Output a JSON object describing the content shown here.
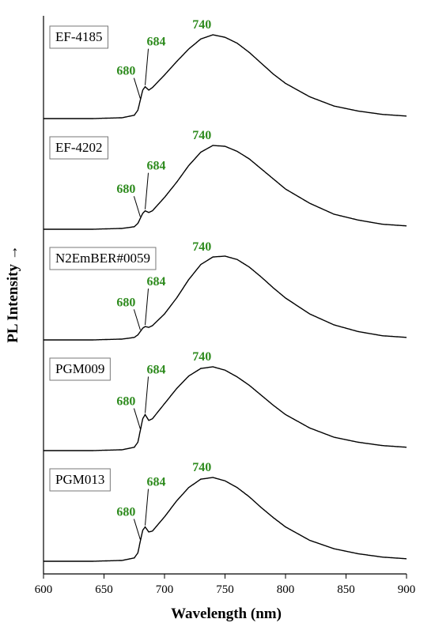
{
  "chart_data": {
    "type": "line",
    "xlabel": "Wavelength (nm)",
    "ylabel": "PL Intensity →",
    "xlim": [
      600,
      900
    ],
    "xticks": [
      600,
      650,
      700,
      750,
      800,
      850,
      900
    ],
    "yticks_shown": false,
    "grid": false,
    "annotation_color": "#2e8b1e",
    "series": [
      {
        "name": "EF-4185",
        "peaks": [
          680,
          684,
          740
        ],
        "x": [
          600,
          640,
          665,
          675,
          678,
          680,
          682,
          684,
          687,
          690,
          700,
          710,
          720,
          730,
          740,
          750,
          760,
          770,
          780,
          790,
          800,
          820,
          840,
          860,
          880,
          900
        ],
        "y": [
          0.0,
          0.0,
          0.01,
          0.04,
          0.1,
          0.22,
          0.34,
          0.38,
          0.34,
          0.37,
          0.52,
          0.68,
          0.83,
          0.95,
          1.0,
          0.97,
          0.9,
          0.79,
          0.66,
          0.53,
          0.42,
          0.26,
          0.15,
          0.09,
          0.05,
          0.03
        ]
      },
      {
        "name": "EF-4202",
        "peaks": [
          680,
          684,
          740
        ],
        "x": [
          600,
          640,
          665,
          675,
          678,
          680,
          682,
          684,
          687,
          690,
          700,
          710,
          720,
          730,
          740,
          750,
          760,
          770,
          780,
          790,
          800,
          820,
          840,
          860,
          880,
          900
        ],
        "y": [
          0.0,
          0.0,
          0.01,
          0.03,
          0.07,
          0.13,
          0.19,
          0.22,
          0.2,
          0.22,
          0.38,
          0.56,
          0.76,
          0.92,
          1.0,
          0.99,
          0.93,
          0.84,
          0.72,
          0.6,
          0.48,
          0.31,
          0.18,
          0.11,
          0.06,
          0.04
        ]
      },
      {
        "name": "N2EmBER#0059",
        "peaks": [
          680,
          684,
          740
        ],
        "x": [
          600,
          640,
          665,
          675,
          678,
          680,
          682,
          684,
          687,
          690,
          700,
          710,
          720,
          730,
          740,
          750,
          760,
          770,
          780,
          790,
          800,
          820,
          840,
          860,
          880,
          900
        ],
        "y": [
          0.0,
          0.0,
          0.01,
          0.03,
          0.06,
          0.1,
          0.14,
          0.16,
          0.15,
          0.17,
          0.31,
          0.5,
          0.72,
          0.9,
          0.99,
          1.0,
          0.96,
          0.87,
          0.75,
          0.62,
          0.5,
          0.31,
          0.18,
          0.1,
          0.05,
          0.03
        ]
      },
      {
        "name": "PGM009",
        "peaks": [
          680,
          684,
          740
        ],
        "x": [
          600,
          640,
          665,
          675,
          678,
          680,
          682,
          684,
          687,
          690,
          700,
          710,
          720,
          730,
          740,
          750,
          760,
          770,
          780,
          790,
          800,
          820,
          840,
          860,
          880,
          900
        ],
        "y": [
          0.0,
          0.0,
          0.01,
          0.04,
          0.1,
          0.24,
          0.38,
          0.43,
          0.36,
          0.38,
          0.56,
          0.74,
          0.89,
          0.98,
          1.0,
          0.96,
          0.88,
          0.78,
          0.66,
          0.54,
          0.43,
          0.27,
          0.16,
          0.1,
          0.06,
          0.04
        ]
      },
      {
        "name": "PGM013",
        "peaks": [
          680,
          684,
          740
        ],
        "x": [
          600,
          640,
          665,
          675,
          678,
          680,
          682,
          684,
          687,
          690,
          700,
          710,
          720,
          730,
          740,
          750,
          760,
          770,
          780,
          790,
          800,
          820,
          840,
          860,
          880,
          900
        ],
        "y": [
          0.0,
          0.0,
          0.01,
          0.04,
          0.1,
          0.24,
          0.37,
          0.41,
          0.35,
          0.36,
          0.53,
          0.72,
          0.88,
          0.98,
          1.0,
          0.96,
          0.88,
          0.77,
          0.64,
          0.52,
          0.41,
          0.25,
          0.15,
          0.09,
          0.05,
          0.03
        ]
      }
    ]
  }
}
